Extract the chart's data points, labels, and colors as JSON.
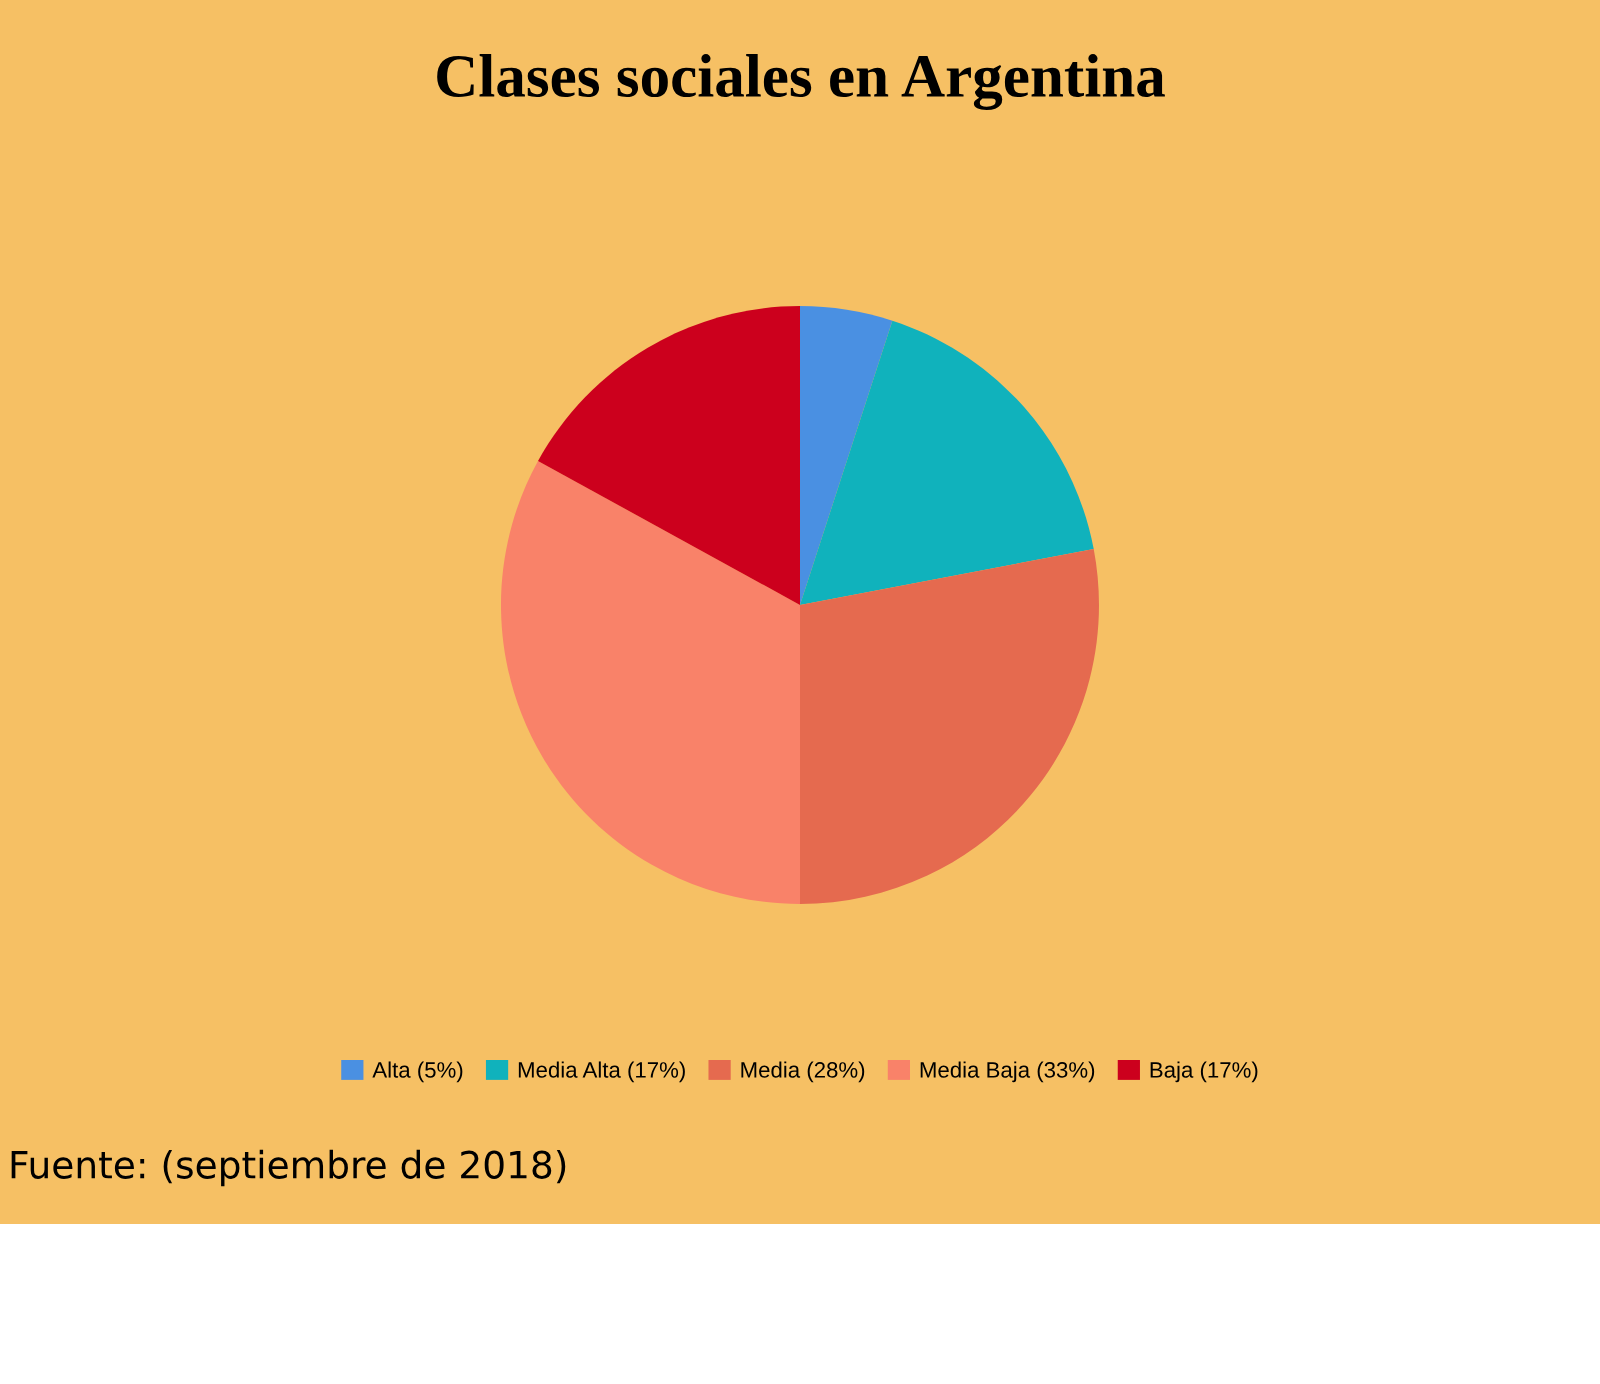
{
  "chart_data": {
    "type": "pie",
    "title": "Clases sociales en Argentina",
    "categories": [
      "Alta (5%)",
      "Media Alta (17%)",
      "Media (28%)",
      "Media Baja (33%)",
      "Baja (17%)"
    ],
    "values": [
      5,
      17,
      28,
      33,
      17
    ],
    "colors": [
      "#4a90e2",
      "#10b2bc",
      "#e56a4f",
      "#f98269",
      "#cc001d"
    ],
    "legend": "bottom",
    "annotations": [
      "Fuente: (septiembre de 2018)"
    ]
  }
}
